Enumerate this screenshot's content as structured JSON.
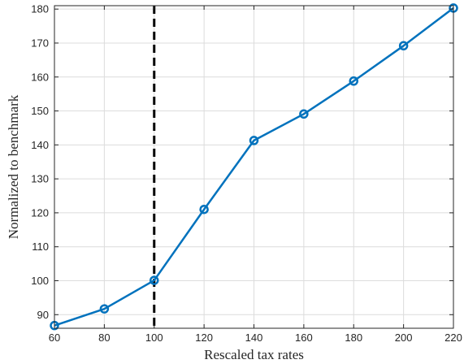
{
  "chart_data": {
    "type": "line",
    "title": "",
    "xlabel": "Rescaled tax rates",
    "ylabel": "Normalized to benchmark",
    "xlim": [
      60,
      220
    ],
    "ylim": [
      86,
      181
    ],
    "xticks": [
      60,
      80,
      100,
      120,
      140,
      160,
      180,
      200,
      220
    ],
    "yticks": [
      90,
      100,
      110,
      120,
      130,
      140,
      150,
      160,
      170,
      180
    ],
    "grid": true,
    "series": [
      {
        "x": [
          60,
          80,
          100,
          120,
          140,
          160,
          180,
          200,
          220
        ],
        "y": [
          86.8,
          91.7,
          100.1,
          121.0,
          141.3,
          149.1,
          158.8,
          169.2,
          180.3
        ],
        "color": "#0072BD",
        "marker": "circle"
      }
    ],
    "reference_line": {
      "x": 100,
      "style": "dashed",
      "color": "#000000"
    }
  }
}
